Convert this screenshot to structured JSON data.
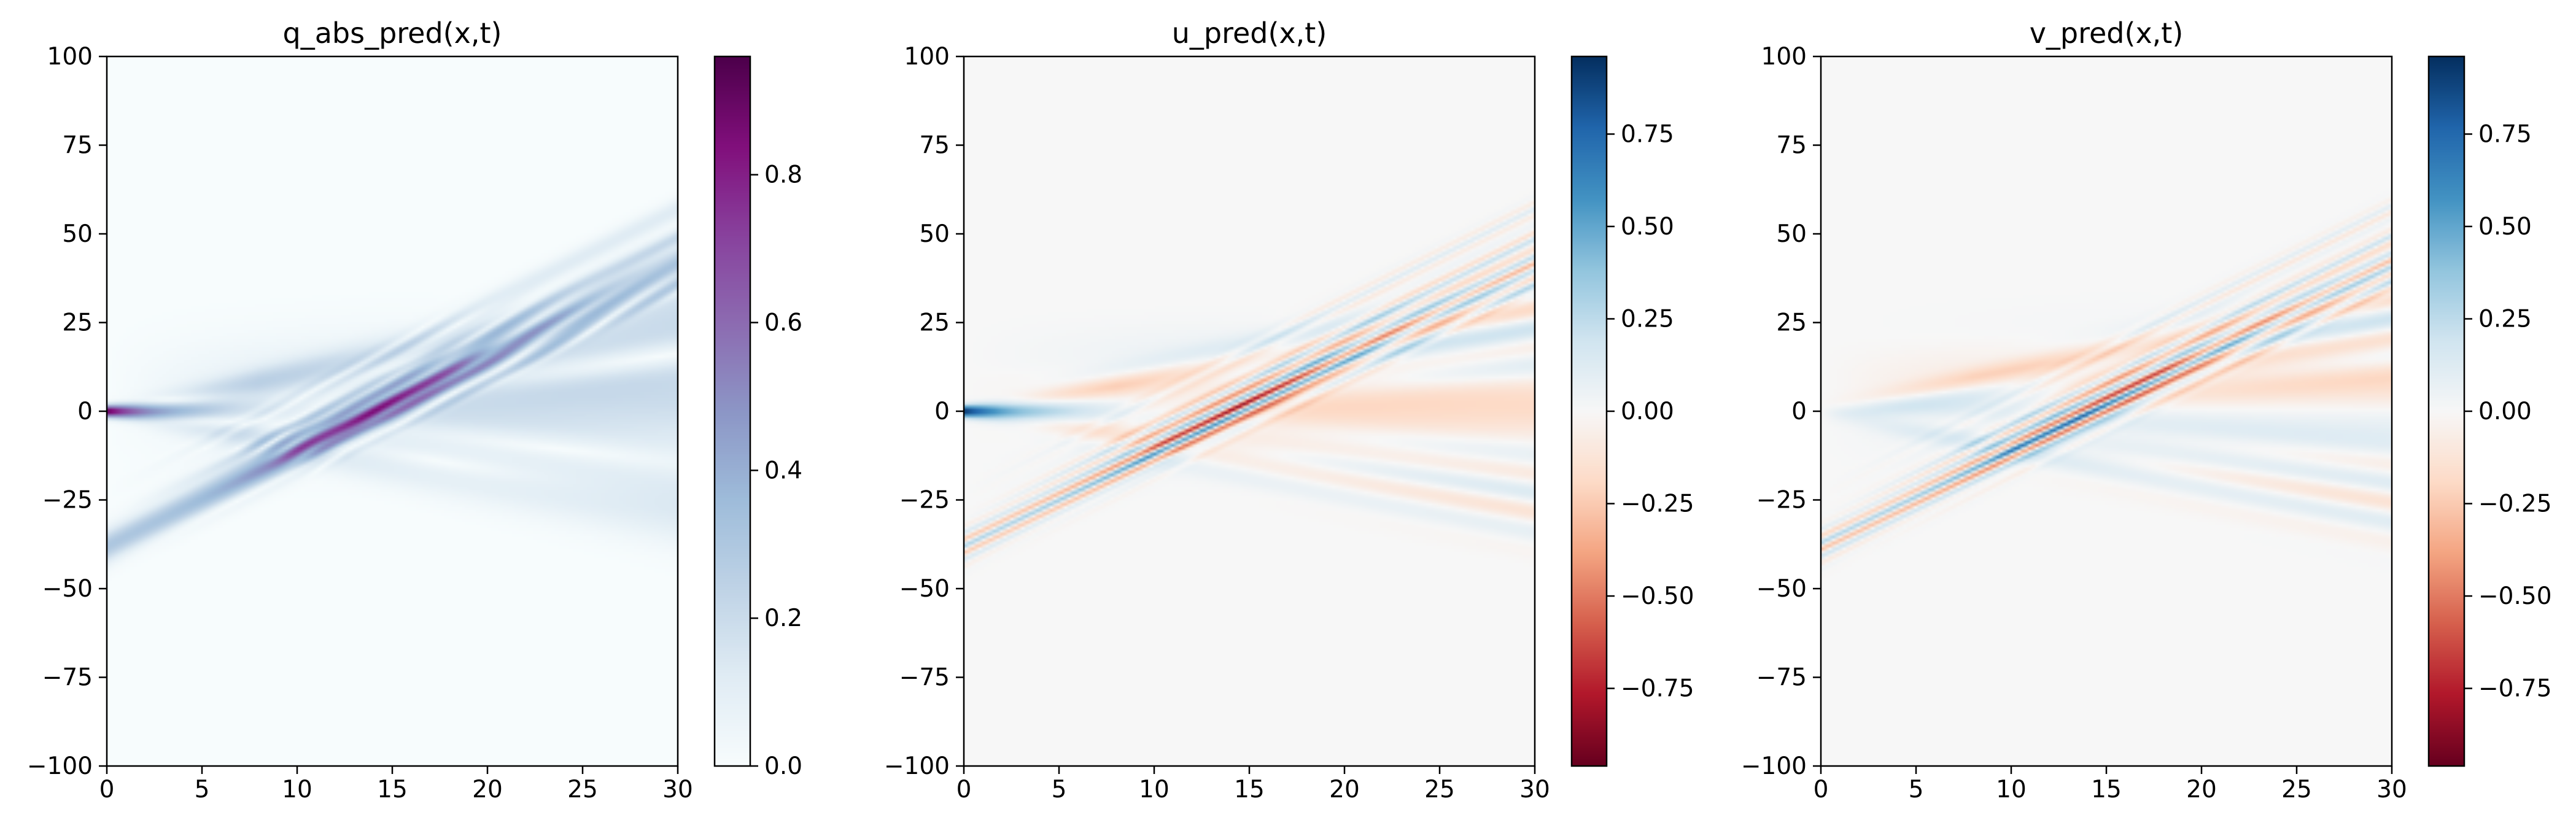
{
  "chart_data": [
    {
      "type": "heatmap",
      "title": "q_abs_pred(x,t)",
      "xlim": [
        0,
        30
      ],
      "ylim": [
        -100,
        100
      ],
      "x_ticks": [
        "0",
        "5",
        "10",
        "15",
        "20",
        "25",
        "30"
      ],
      "y_ticks": [
        "100",
        "75",
        "50",
        "25",
        "0",
        "−25",
        "−50",
        "−75",
        "−100"
      ],
      "colorbar": {
        "range": [
          0,
          0.96
        ],
        "ticks": [
          "0.0",
          "0.2",
          "0.4",
          "0.6",
          "0.8"
        ],
        "colormap": "BuPu"
      },
      "quantity": "abs"
    },
    {
      "type": "heatmap",
      "title": "u_pred(x,t)",
      "xlim": [
        0,
        30
      ],
      "ylim": [
        -100,
        100
      ],
      "x_ticks": [
        "0",
        "5",
        "10",
        "15",
        "20",
        "25",
        "30"
      ],
      "y_ticks": [
        "100",
        "75",
        "50",
        "25",
        "0",
        "−25",
        "−50",
        "−75",
        "−100"
      ],
      "colorbar": {
        "range": [
          -0.96,
          0.96
        ],
        "ticks": [
          "0.75",
          "0.50",
          "0.25",
          "0.00",
          "−0.25",
          "−0.50",
          "−0.75"
        ],
        "colormap": "RdBu"
      },
      "quantity": "real"
    },
    {
      "type": "heatmap",
      "title": "v_pred(x,t)",
      "xlim": [
        0,
        30
      ],
      "ylim": [
        -100,
        100
      ],
      "x_ticks": [
        "0",
        "5",
        "10",
        "15",
        "20",
        "25",
        "30"
      ],
      "y_ticks": [
        "100",
        "75",
        "50",
        "25",
        "0",
        "−25",
        "−50",
        "−75",
        "−100"
      ],
      "colorbar": {
        "range": [
          -0.96,
          0.96
        ],
        "ticks": [
          "0.75",
          "0.50",
          "0.25",
          "0.00",
          "−0.25",
          "−0.50",
          "−0.75"
        ],
        "colormap": "RdBu"
      },
      "quantity": "imag"
    }
  ]
}
